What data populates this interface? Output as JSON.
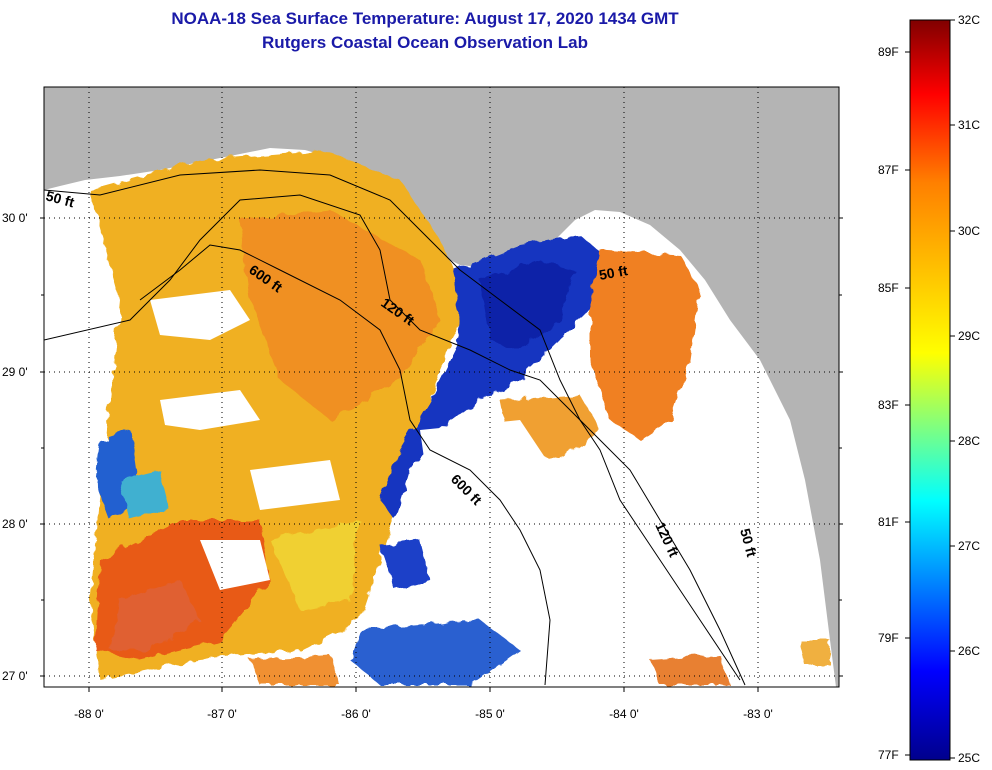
{
  "header": {
    "title": "NOAA-18 Sea Surface Temperature:  August 17, 2020 1434 GMT",
    "subtitle": "Rutgers Coastal Ocean Observation Lab"
  },
  "map": {
    "lon_ticks": [
      "-88 0'",
      "-87 0'",
      "-86 0'",
      "-85 0'",
      "-84 0'",
      "-83 0'"
    ],
    "lat_ticks": [
      "30 0'",
      "29 0'",
      "28 0'",
      "27 0'"
    ],
    "contour_labels": [
      "50 ft",
      "600 ft",
      "120 ft",
      "50 ft",
      "600 ft",
      "120 ft",
      "50 ft"
    ],
    "colors": {
      "land": "#b4b4b4",
      "cloud": "#ffffff",
      "cold": "#1030c8",
      "warm": "#f0a020",
      "hot": "#e84010"
    }
  },
  "colorbar": {
    "celsius": [
      "32C",
      "31C",
      "30C",
      "29C",
      "28C",
      "27C",
      "26C",
      "25C"
    ],
    "fahrenheit": [
      "89F",
      "87F",
      "85F",
      "83F",
      "81F",
      "79F",
      "77F"
    ]
  }
}
